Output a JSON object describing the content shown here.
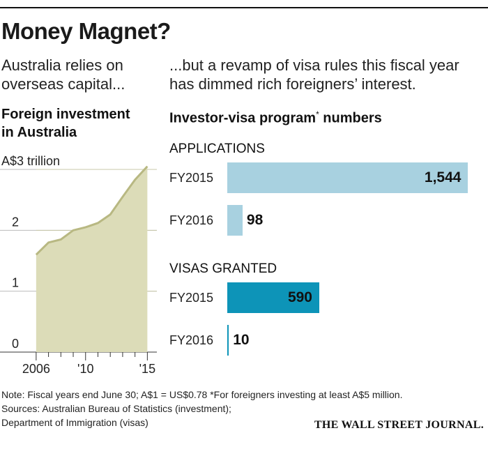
{
  "title": "Money Magnet?",
  "left": {
    "subhead": [
      "Australia relies on",
      "overseas capital..."
    ],
    "chart_title": [
      "Foreign investment",
      "in Australia"
    ]
  },
  "right": {
    "subhead": [
      "...but a revamp of visa rules this fiscal year",
      "has dimmed rich foreigners’ interest."
    ],
    "chart_title": "Investor-visa program",
    "chart_title_asterisk": "*",
    "chart_title_suffix": " numbers"
  },
  "footer": {
    "note": "Note: Fiscal years end June 30; A$1 = US$0.78   *For foreigners investing at least A$5 million.",
    "sources1": "Sources: Australian Bureau of Statistics (investment);",
    "sources2": "Department of Immigration (visas)",
    "publisher": "THE WALL STREET JOURNAL."
  },
  "colors": {
    "area_fill": "#dcdcb8",
    "area_line": "#b8b882",
    "applications_bar": "#a8d1e0",
    "visas_bar": "#0d94b8",
    "grid": "#bbbbbb"
  },
  "chart_data": [
    {
      "type": "area",
      "title": "Foreign investment in Australia",
      "ylabel": "A$ trillion",
      "x": [
        2006,
        2007,
        2008,
        2009,
        2010,
        2011,
        2012,
        2013,
        2014,
        2015
      ],
      "values": [
        1.6,
        1.8,
        1.85,
        2.0,
        2.05,
        2.12,
        2.26,
        2.55,
        2.83,
        3.05
      ],
      "xlim": [
        2005.5,
        2015.6
      ],
      "ylim": [
        0,
        3
      ],
      "y_ticks": [
        {
          "v": 0,
          "label": "0"
        },
        {
          "v": 1,
          "label": "1"
        },
        {
          "v": 2,
          "label": "2"
        },
        {
          "v": 3,
          "label": "A$3 trillion"
        }
      ],
      "x_ticks": [
        {
          "v": 2006,
          "label": "2006"
        },
        {
          "v": 2010,
          "label": "'10"
        },
        {
          "v": 2015,
          "label": "'15"
        }
      ],
      "x_minor_ticks": [
        2007,
        2008,
        2009,
        2011,
        2012,
        2013,
        2014
      ],
      "grid": true
    },
    {
      "type": "bar",
      "title": "Investor-visa program numbers",
      "orientation": "horizontal",
      "xlim": [
        0,
        1600
      ],
      "groups": [
        {
          "label": "APPLICATIONS",
          "categories": [
            "FY2015",
            "FY2016"
          ],
          "values": [
            1544,
            98
          ],
          "value_labels": [
            "1,544",
            "98"
          ]
        },
        {
          "label": "VISAS GRANTED",
          "categories": [
            "FY2015",
            "FY2016"
          ],
          "values": [
            590,
            10
          ],
          "value_labels": [
            "590",
            "10"
          ]
        }
      ]
    }
  ]
}
